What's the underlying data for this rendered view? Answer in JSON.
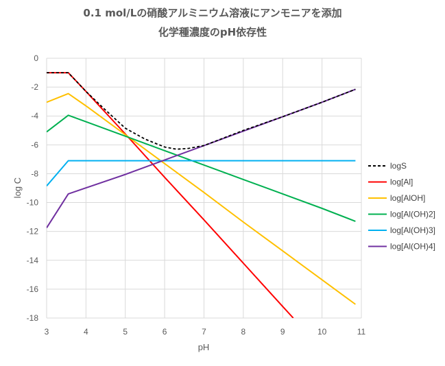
{
  "chart_data": {
    "type": "line",
    "title": "0.1 mol/Lの硝酸アルミニウム溶液にアンモニアを添加",
    "subtitle": "化学種濃度のpH依存性",
    "xlabel": "pH",
    "ylabel": "log C",
    "xlim": [
      3,
      11
    ],
    "ylim": [
      -18,
      0
    ],
    "xticks": [
      "3",
      "4",
      "5",
      "6",
      "7",
      "8",
      "9",
      "10",
      "11"
    ],
    "yticks": [
      "0",
      "-2",
      "-4",
      "-6",
      "-8",
      "-10",
      "-12",
      "-14",
      "-16",
      "-18"
    ],
    "grid": true,
    "legend_position": "right",
    "series": [
      {
        "name": "logS",
        "color": "#000000",
        "dash": true,
        "points": [
          [
            3,
            -1.0
          ],
          [
            3.55,
            -1.0
          ],
          [
            4,
            -2.3
          ],
          [
            4.5,
            -3.6
          ],
          [
            5,
            -4.85
          ],
          [
            5.5,
            -5.6
          ],
          [
            6,
            -6.15
          ],
          [
            6.3,
            -6.3
          ],
          [
            6.6,
            -6.25
          ],
          [
            7,
            -6.05
          ],
          [
            8,
            -5.0
          ],
          [
            9,
            -4.05
          ],
          [
            10,
            -3.05
          ],
          [
            10.85,
            -2.15
          ]
        ]
      },
      {
        "name": "log[Al]",
        "color": "#ff0000",
        "points": [
          [
            3,
            -1.0
          ],
          [
            3.55,
            -1.0
          ],
          [
            4,
            -2.3
          ],
          [
            5,
            -5.25
          ],
          [
            6,
            -8.25
          ],
          [
            7,
            -11.2
          ],
          [
            8,
            -14.2
          ],
          [
            9,
            -17.2
          ],
          [
            9.27,
            -18.0
          ]
        ]
      },
      {
        "name": "log[AlOH]",
        "color": "#ffc000",
        "points": [
          [
            3,
            -3.05
          ],
          [
            3.55,
            -2.45
          ],
          [
            4,
            -3.3
          ],
          [
            5,
            -5.3
          ],
          [
            6,
            -7.3
          ],
          [
            7,
            -9.3
          ],
          [
            8,
            -11.35
          ],
          [
            9,
            -13.35
          ],
          [
            10,
            -15.35
          ],
          [
            10.85,
            -17.05
          ]
        ]
      },
      {
        "name": "log[Al(OH)2]",
        "color": "#00b050",
        "points": [
          [
            3,
            -5.1
          ],
          [
            3.55,
            -3.95
          ],
          [
            5,
            -5.4
          ],
          [
            6,
            -6.4
          ],
          [
            7,
            -7.4
          ],
          [
            8,
            -8.4
          ],
          [
            9,
            -9.4
          ],
          [
            10,
            -10.4
          ],
          [
            10.85,
            -11.3
          ]
        ]
      },
      {
        "name": "log[Al(OH)3]",
        "color": "#00b0f0",
        "points": [
          [
            3,
            -8.85
          ],
          [
            3.55,
            -7.1
          ],
          [
            10.85,
            -7.1
          ]
        ]
      },
      {
        "name": "log[Al(OH)4]",
        "color": "#7030a0",
        "points": [
          [
            3,
            -11.75
          ],
          [
            3.55,
            -9.4
          ],
          [
            5,
            -8.05
          ],
          [
            6,
            -7.05
          ],
          [
            7,
            -6.05
          ],
          [
            8,
            -5.05
          ],
          [
            9,
            -4.05
          ],
          [
            10,
            -3.05
          ],
          [
            10.85,
            -2.15
          ]
        ]
      }
    ]
  }
}
